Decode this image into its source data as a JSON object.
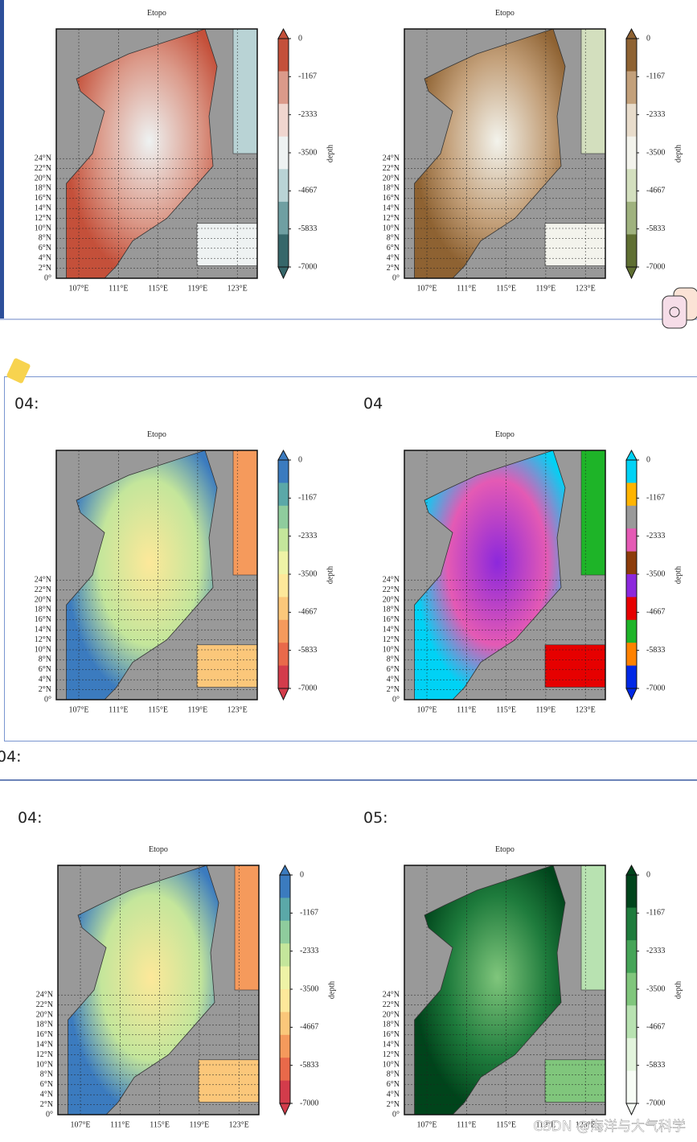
{
  "map_axes": {
    "title": "Etopo",
    "lat_labels": [
      "0°",
      "2°N",
      "4°N",
      "6°N",
      "8°N",
      "10°N",
      "12°N",
      "14°N",
      "16°N",
      "18°N",
      "20°N",
      "22°N",
      "24°N"
    ],
    "lon_labels": [
      "107°E",
      "111°E",
      "115°E",
      "119°E",
      "123°E"
    ],
    "colorbar_ticks": [
      0,
      -1167,
      -2333,
      -3500,
      -4667,
      -5833,
      -7000
    ],
    "colorbar_label": "depth"
  },
  "panels": [
    {
      "colors": [
        "#c4503a",
        "#db9a8a",
        "#f0d6cf",
        "#eef2f2",
        "#b9d3d5",
        "#6f9fa2",
        "#36676a"
      ]
    },
    {
      "colors": [
        "#8e6232",
        "#c3a07a",
        "#e8dccb",
        "#f3f3ec",
        "#d3dfbe",
        "#9fb27e",
        "#5f6f32"
      ]
    },
    {
      "colors": [
        "#3b7bbf",
        "#5ba8a8",
        "#8fcc9d",
        "#c4e69b",
        "#eef3a6",
        "#fde89a",
        "#fbc77a",
        "#f59a5c",
        "#e9694a",
        "#d33c4b"
      ]
    },
    {
      "colors": [
        "#00d2f5",
        "#ffb400",
        "#999999",
        "#e45ab4",
        "#8c3c0a",
        "#8c28dc",
        "#e60000",
        "#1eb428",
        "#ff8200",
        "#0028e6"
      ]
    },
    {
      "colors": [
        "#3b7bbf",
        "#5ba8a8",
        "#8fcc9d",
        "#c4e69b",
        "#eef3a6",
        "#fde89a",
        "#fbc77a",
        "#f59a5c",
        "#e9694a",
        "#d33c4b"
      ]
    },
    {
      "colors": [
        "#00441b",
        "#1e7b3c",
        "#45a457",
        "#80c67c",
        "#b8e2b1",
        "#e2f4dc",
        "#f7fcf5"
      ]
    }
  ],
  "section_labels": [
    "04:",
    "04",
    "04:",
    "04:",
    "05:"
  ],
  "watermark": "CSDN @海洋与大气科学"
}
